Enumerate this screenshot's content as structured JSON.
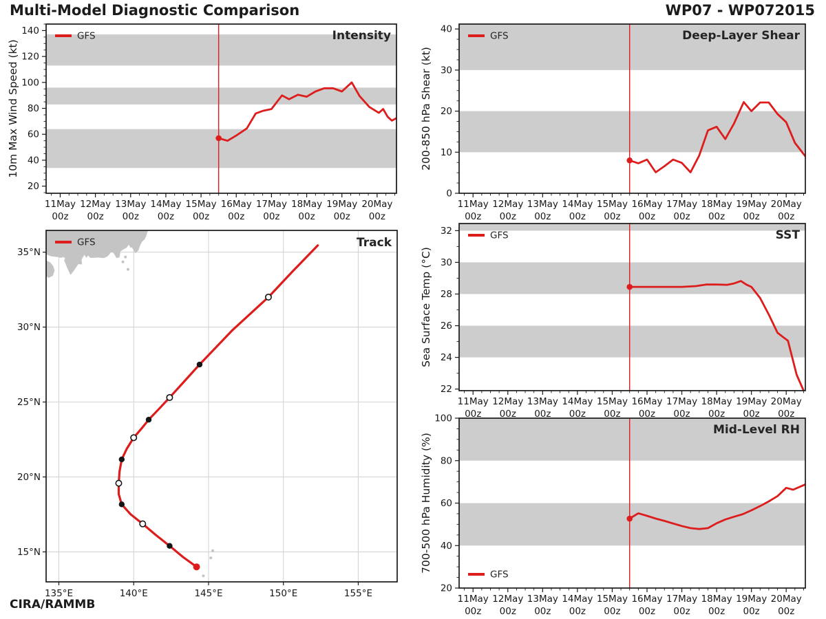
{
  "header": {
    "title_left": "Multi-Model Diagnostic Comparison",
    "title_right": "WP07 - WP072015",
    "credit": "CIRA/RAMMB"
  },
  "legend_label": "GFS",
  "colors": {
    "line_red": "#dd1c1c",
    "band_gray": "#cdcdcd",
    "land_gray": "#c4c4c4",
    "grid_gray": "#d4d4d4",
    "ink": "#171717"
  },
  "time_axis": {
    "day_labels": [
      "11May",
      "12May",
      "13May",
      "14May",
      "15May",
      "16May",
      "17May",
      "18May",
      "19May",
      "20May"
    ],
    "sub_label": "00z",
    "t_min": -0.4,
    "t_max": 9.55,
    "forecast_start_t": 4.5
  },
  "chart_data": [
    {
      "id": "intensity",
      "type": "line",
      "title": "Intensity",
      "ylabel": "10m Max Wind Speed (kt)",
      "ylim": [
        14.5,
        145
      ],
      "yticks": [
        20,
        40,
        60,
        80,
        100,
        120,
        140
      ],
      "yminor": 5,
      "bands": [
        [
          34,
          64
        ],
        [
          83,
          96
        ],
        [
          113,
          137
        ]
      ],
      "legend_pos": "top-left",
      "series": [
        {
          "name": "GFS",
          "points": [
            [
              4.5,
              57
            ],
            [
              4.75,
              55
            ],
            [
              5.0,
              59
            ],
            [
              5.3,
              64.5
            ],
            [
              5.55,
              76
            ],
            [
              5.75,
              78
            ],
            [
              6.0,
              79.5
            ],
            [
              6.3,
              90
            ],
            [
              6.5,
              87
            ],
            [
              6.75,
              90.5
            ],
            [
              7.0,
              89
            ],
            [
              7.25,
              93
            ],
            [
              7.5,
              95.5
            ],
            [
              7.75,
              95.5
            ],
            [
              8.0,
              93
            ],
            [
              8.28,
              100
            ],
            [
              8.5,
              89.5
            ],
            [
              8.78,
              81
            ],
            [
              9.05,
              76.5
            ],
            [
              9.17,
              79.5
            ],
            [
              9.3,
              73.5
            ],
            [
              9.42,
              70.5
            ],
            [
              9.55,
              72.5
            ]
          ]
        }
      ]
    },
    {
      "id": "shear",
      "type": "line",
      "title": "Deep-Layer Shear",
      "ylabel": "200-850 hPa Shear (kt)",
      "ylim": [
        0,
        41.2
      ],
      "yticks": [
        0,
        10,
        20,
        30,
        40
      ],
      "yminor": 2.5,
      "bands": [
        [
          10,
          20
        ],
        [
          30,
          41.2
        ]
      ],
      "legend_pos": "top-left",
      "series": [
        {
          "name": "GFS",
          "points": [
            [
              4.5,
              8
            ],
            [
              4.75,
              7.3
            ],
            [
              5.0,
              8.2
            ],
            [
              5.25,
              5.1
            ],
            [
              5.5,
              6.6
            ],
            [
              5.75,
              8.2
            ],
            [
              6.0,
              7.4
            ],
            [
              6.25,
              5.1
            ],
            [
              6.5,
              9.2
            ],
            [
              6.75,
              15.3
            ],
            [
              7.0,
              16.2
            ],
            [
              7.25,
              13.2
            ],
            [
              7.5,
              17
            ],
            [
              7.78,
              22.2
            ],
            [
              8.0,
              20
            ],
            [
              8.25,
              22.1
            ],
            [
              8.5,
              22.1
            ],
            [
              8.75,
              19.3
            ],
            [
              9.0,
              17.3
            ],
            [
              9.25,
              12.3
            ],
            [
              9.55,
              9.0
            ]
          ]
        }
      ]
    },
    {
      "id": "sst",
      "type": "line",
      "title": "SST",
      "ylabel": "Sea Surface Temp (°C)",
      "ylim": [
        21.9,
        32.45
      ],
      "yticks": [
        22,
        24,
        26,
        28,
        30,
        32
      ],
      "yminor": 1,
      "bands": [
        [
          24,
          26
        ],
        [
          28,
          30
        ],
        [
          32,
          32.45
        ]
      ],
      "legend_pos": "top-left",
      "series": [
        {
          "name": "GFS",
          "points": [
            [
              4.5,
              28.45
            ],
            [
              5.0,
              28.45
            ],
            [
              5.5,
              28.45
            ],
            [
              6.0,
              28.45
            ],
            [
              6.4,
              28.5
            ],
            [
              6.7,
              28.6
            ],
            [
              7.0,
              28.6
            ],
            [
              7.3,
              28.58
            ],
            [
              7.5,
              28.67
            ],
            [
              7.7,
              28.82
            ],
            [
              7.85,
              28.6
            ],
            [
              8.0,
              28.45
            ],
            [
              8.25,
              27.75
            ],
            [
              8.5,
              26.7
            ],
            [
              8.75,
              25.55
            ],
            [
              8.9,
              25.3
            ],
            [
              9.05,
              25.05
            ],
            [
              9.3,
              22.9
            ],
            [
              9.5,
              21.9
            ]
          ]
        }
      ]
    },
    {
      "id": "rh",
      "type": "line",
      "title": "Mid-Level RH",
      "ylabel": "700-500 hPa Humidity (%)",
      "ylim": [
        20,
        100
      ],
      "yticks": [
        20,
        40,
        60,
        80,
        100
      ],
      "yminor": 5,
      "bands": [
        [
          40,
          60
        ],
        [
          80,
          100
        ]
      ],
      "legend_pos": "bottom-left",
      "series": [
        {
          "name": "GFS",
          "points": [
            [
              4.5,
              52.7
            ],
            [
              4.75,
              55.2
            ],
            [
              5.0,
              54
            ],
            [
              5.25,
              52.7
            ],
            [
              5.5,
              51.6
            ],
            [
              5.75,
              50.4
            ],
            [
              6.0,
              49.2
            ],
            [
              6.25,
              48.2
            ],
            [
              6.5,
              47.8
            ],
            [
              6.75,
              48.2
            ],
            [
              7.0,
              50.5
            ],
            [
              7.25,
              52.3
            ],
            [
              7.5,
              53.6
            ],
            [
              7.75,
              54.8
            ],
            [
              8.0,
              56.6
            ],
            [
              8.25,
              58.6
            ],
            [
              8.5,
              60.8
            ],
            [
              8.75,
              63.3
            ],
            [
              9.0,
              67.2
            ],
            [
              9.2,
              66.3
            ],
            [
              9.55,
              68.8
            ]
          ]
        }
      ]
    },
    {
      "id": "track",
      "type": "map",
      "title": "Track",
      "lon_range": [
        134.15,
        157.6
      ],
      "lat_range": [
        13.0,
        36.45
      ],
      "lon_ticks": [
        135,
        140,
        145,
        150,
        155
      ],
      "lat_ticks": [
        15,
        20,
        25,
        30,
        35
      ],
      "lon_tick_labels": [
        "135°E",
        "140°E",
        "145°E",
        "150°E",
        "155°E"
      ],
      "lat_tick_labels": [
        "15°N",
        "20°N",
        "25°N",
        "30°N",
        "35°N"
      ],
      "start_point": [
        144.2,
        14.0
      ],
      "line": [
        [
          144.2,
          14.0
        ],
        [
          143.3,
          14.65
        ],
        [
          142.4,
          15.4
        ],
        [
          141.45,
          16.15
        ],
        [
          140.6,
          16.87
        ],
        [
          139.8,
          17.5
        ],
        [
          139.2,
          18.17
        ],
        [
          139.0,
          18.85
        ],
        [
          139.0,
          19.58
        ],
        [
          139.05,
          20.35
        ],
        [
          139.2,
          21.17
        ],
        [
          139.55,
          21.9
        ],
        [
          140.0,
          22.62
        ],
        [
          140.5,
          23.2
        ],
        [
          141.0,
          23.82
        ],
        [
          141.7,
          24.55
        ],
        [
          142.4,
          25.3
        ],
        [
          143.4,
          26.4
        ],
        [
          144.4,
          27.5
        ],
        [
          146.6,
          29.8
        ],
        [
          149.0,
          32.0
        ],
        [
          150.6,
          33.7
        ],
        [
          152.3,
          35.45
        ]
      ],
      "markers_filled": [
        [
          142.4,
          15.4
        ],
        [
          139.2,
          18.17
        ],
        [
          139.2,
          21.17
        ],
        [
          141.0,
          23.82
        ],
        [
          144.4,
          27.5
        ]
      ],
      "markers_open": [
        [
          140.6,
          16.87
        ],
        [
          139.0,
          19.58
        ],
        [
          140.0,
          22.62
        ],
        [
          142.4,
          25.3
        ],
        [
          149.0,
          32.0
        ]
      ],
      "land": [
        [
          [
            134.15,
            36.45
          ],
          [
            134.15,
            34.85
          ],
          [
            134.5,
            34.72
          ],
          [
            134.9,
            34.68
          ],
          [
            135.15,
            34.62
          ],
          [
            135.3,
            34.68
          ],
          [
            135.42,
            34.58
          ],
          [
            135.35,
            34.45
          ],
          [
            135.45,
            34.22
          ],
          [
            135.58,
            33.9
          ],
          [
            135.78,
            33.48
          ],
          [
            136.0,
            33.75
          ],
          [
            136.2,
            34.05
          ],
          [
            136.3,
            34.2
          ],
          [
            136.55,
            34.18
          ],
          [
            136.52,
            34.5
          ],
          [
            136.7,
            34.82
          ],
          [
            136.85,
            34.62
          ],
          [
            136.95,
            34.78
          ],
          [
            137.1,
            34.62
          ],
          [
            137.35,
            34.62
          ],
          [
            137.6,
            34.64
          ],
          [
            138.0,
            34.6
          ],
          [
            138.25,
            34.72
          ],
          [
            138.5,
            35.0
          ],
          [
            138.65,
            34.95
          ],
          [
            138.85,
            34.6
          ],
          [
            139.05,
            34.65
          ],
          [
            139.12,
            35.05
          ],
          [
            139.3,
            35.18
          ],
          [
            139.5,
            35.28
          ],
          [
            139.68,
            35.5
          ],
          [
            139.78,
            35.3
          ],
          [
            139.88,
            35.32
          ],
          [
            140.0,
            35.12
          ],
          [
            140.12,
            34.92
          ],
          [
            140.32,
            35.12
          ],
          [
            140.42,
            35.42
          ],
          [
            140.55,
            35.68
          ],
          [
            140.72,
            35.85
          ],
          [
            140.85,
            36.1
          ],
          [
            140.95,
            36.45
          ]
        ],
        [
          [
            134.15,
            34.45
          ],
          [
            134.42,
            34.32
          ],
          [
            134.62,
            34.08
          ],
          [
            134.72,
            33.78
          ],
          [
            134.6,
            33.42
          ],
          [
            134.3,
            33.28
          ],
          [
            134.15,
            33.42
          ]
        ]
      ],
      "islands": [
        [
          139.45,
          34.68
        ],
        [
          139.28,
          34.35
        ],
        [
          139.62,
          33.85
        ],
        [
          144.65,
          13.4
        ],
        [
          145.15,
          14.6
        ],
        [
          145.28,
          15.08
        ]
      ]
    }
  ]
}
